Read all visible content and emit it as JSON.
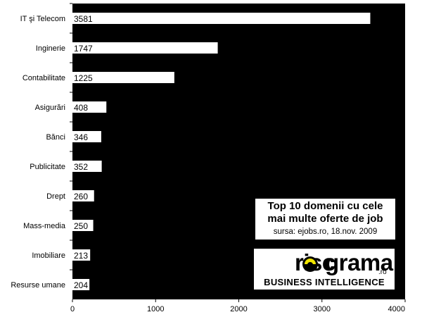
{
  "chart_data": {
    "type": "bar",
    "orientation": "horizontal",
    "categories": [
      "IT şi Telecom",
      "Inginerie",
      "Contabilitate",
      "Asigurări",
      "Bănci",
      "Publicitate",
      "Drept",
      "Mass-media",
      "Imobiliare",
      "Resurse umane"
    ],
    "values": [
      3581,
      1747,
      1225,
      408,
      346,
      352,
      260,
      250,
      213,
      204
    ],
    "xlim": [
      0,
      4000
    ],
    "xticks": [
      0,
      1000,
      2000,
      3000,
      4000
    ],
    "grid": false,
    "plot_background": "#000000",
    "bar_color": "#ffffff",
    "data_labels": true
  },
  "annotation": {
    "title_line1": "Top 10 domenii cu cele",
    "title_line2": "mai multe oferte de job",
    "source": "sursa: ejobs.ro, 18.nov. 2009"
  },
  "logo": {
    "text_a": "risc",
    "text_b": "grama",
    "suffix": ".ro",
    "tagline": "BUSINESS INTELLIGENCE",
    "eye_color": "#f2e600"
  }
}
